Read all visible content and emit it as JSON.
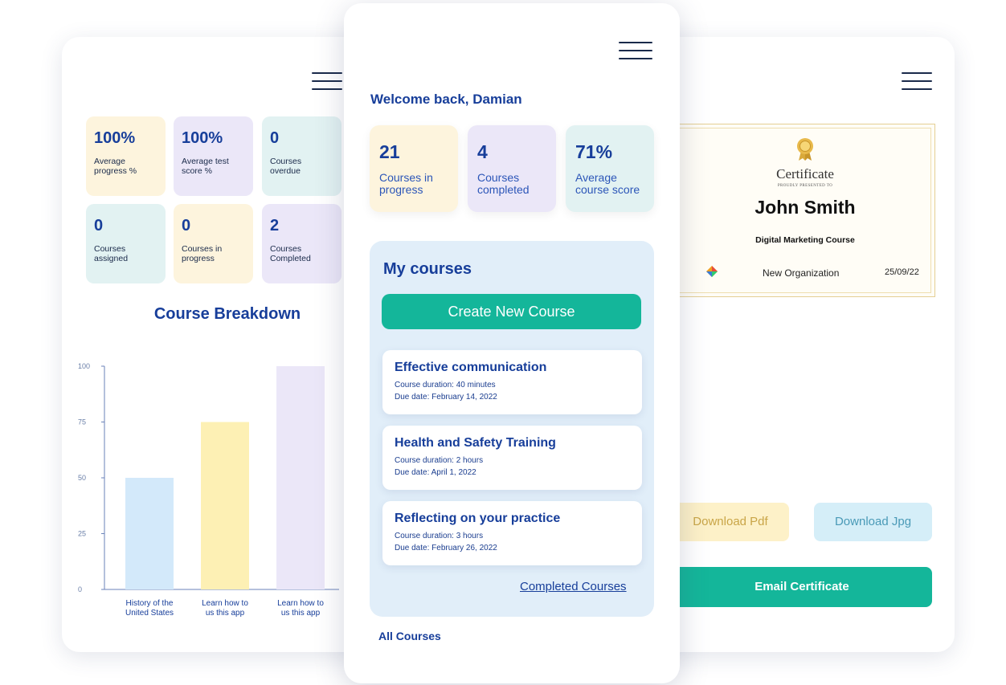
{
  "left_panel": {
    "stats": [
      {
        "value": "100%",
        "label": "Average progress %"
      },
      {
        "value": "100%",
        "label": "Average test score %"
      },
      {
        "value": "0",
        "label": "Courses overdue"
      },
      {
        "value": "0",
        "label": "Courses assigned"
      },
      {
        "value": "0",
        "label": "Courses in progress"
      },
      {
        "value": "2",
        "label": "Courses Completed"
      }
    ],
    "chart_title": "Course Breakdown"
  },
  "chart_data": {
    "type": "bar",
    "title": "Course Breakdown",
    "categories": [
      "History of the United States",
      "Learn how to us this app",
      "Learn how to us this app"
    ],
    "category_lines": [
      [
        "History of the",
        "United States"
      ],
      [
        "Learn how to",
        "us this app"
      ],
      [
        "Learn how to",
        "us this app"
      ]
    ],
    "values": [
      50,
      75,
      100
    ],
    "colors": [
      "#d3e9fa",
      "#fdf0b4",
      "#ebe7f8"
    ],
    "yticks": [
      0,
      25,
      50,
      75,
      100
    ],
    "ylim": [
      0,
      100
    ],
    "grid": false
  },
  "phone": {
    "welcome": "Welcome back, Damian",
    "stats": [
      {
        "value": "21",
        "label": "Courses in progress"
      },
      {
        "value": "4",
        "label": "Courses completed"
      },
      {
        "value": "71%",
        "label": "Average course score"
      }
    ],
    "my_courses_title": "My courses",
    "create_button": "Create New Course",
    "courses": [
      {
        "title": "Effective communication",
        "duration": "Course duration: 40 minutes",
        "due": "Due date: February 14, 2022"
      },
      {
        "title": "Health and Safety Training",
        "duration": "Course duration: 2 hours",
        "due": "Due date: April 1, 2022"
      },
      {
        "title": "Reflecting on your practice",
        "duration": "Course duration: 3 hours",
        "due": "Due date: February 26, 2022"
      }
    ],
    "completed_link": "Completed Courses",
    "all_courses": "All Courses"
  },
  "certificate": {
    "heading": "Certificate",
    "subheading": "PROUDLY PRESENTED TO",
    "name": "John Smith",
    "course": "Digital Marketing Course",
    "organization": "New Organization",
    "date": "25/09/22",
    "download_pdf": "Download Pdf",
    "download_jpg": "Download Jpg",
    "email": "Email Certificate"
  },
  "icons": {
    "menu": "hamburger-menu-icon",
    "ribbon": "award-ribbon-icon",
    "org_logo": "organization-logo-icon"
  }
}
